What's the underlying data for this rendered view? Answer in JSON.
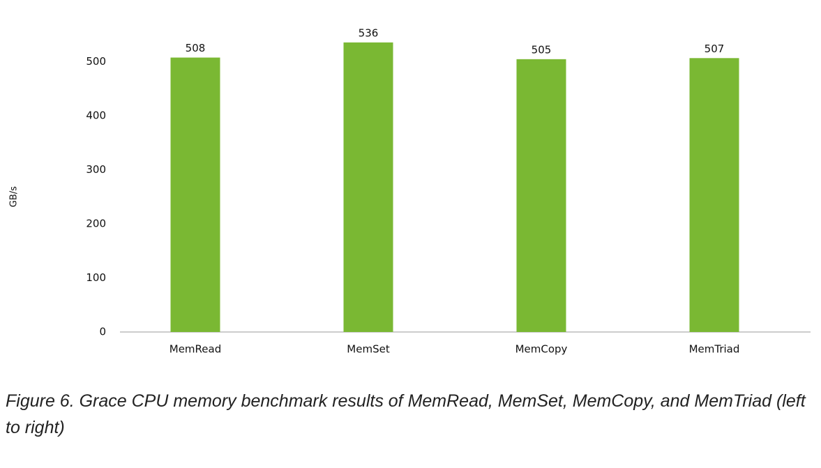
{
  "chart_data": {
    "type": "bar",
    "y_label": "GB/s",
    "categories": [
      "MemRead",
      "MemSet",
      "MemCopy",
      "MemTriad"
    ],
    "values": [
      508,
      536,
      505,
      507
    ],
    "color": "#7ab833",
    "ylim": [
      0,
      550
    ],
    "yticks": [
      0,
      100,
      200,
      300,
      400,
      500
    ],
    "grid": false
  },
  "caption": "Figure 6. Grace CPU memory benchmark results of MemRead, MemSet, MemCopy, and MemTriad (left to right)"
}
